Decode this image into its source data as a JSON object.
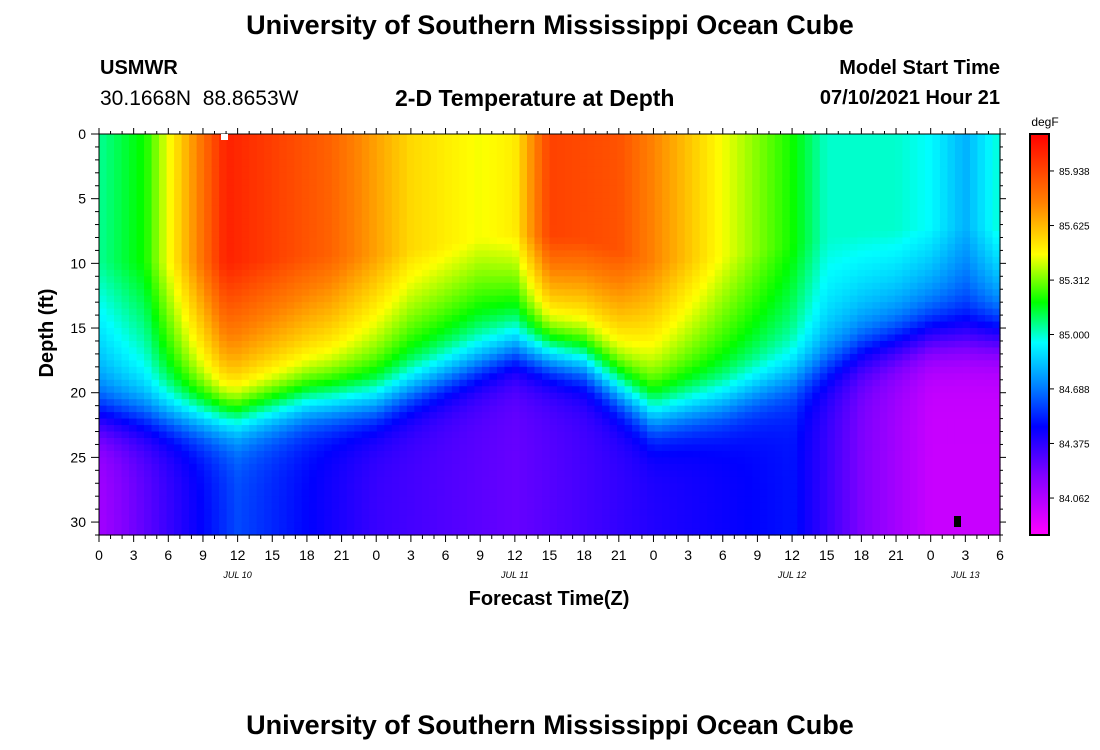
{
  "header": {
    "title": "University of Southern Mississippi Ocean Cube",
    "station_id": "USMWR",
    "station_coords": "30.1668N  88.8653W",
    "plot_title": "2-D Temperature at Depth",
    "model_start_label": "Model Start Time",
    "model_start_value": "07/10/2021 Hour 21"
  },
  "footer": {
    "title": "University of Southern Mississippi Ocean Cube"
  },
  "chart_data": {
    "type": "heatmap",
    "title": "2-D Temperature at Depth",
    "xlabel": "Forecast Time(Z)",
    "ylabel": "Depth (ft)",
    "x_range_hours": [
      0,
      78
    ],
    "y_range_ft": [
      0,
      31
    ],
    "y_inverted": true,
    "x_tick_labels": [
      "0",
      "3",
      "6",
      "9",
      "12",
      "15",
      "18",
      "21",
      "0",
      "3",
      "6",
      "9",
      "12",
      "15",
      "18",
      "21",
      "0",
      "3",
      "6",
      "9",
      "12",
      "15",
      "18",
      "21",
      "0",
      "3",
      "6"
    ],
    "date_labels": [
      {
        "label": "JUL 10",
        "hour": 12
      },
      {
        "label": "JUL 11",
        "hour": 36
      },
      {
        "label": "JUL 12",
        "hour": 60
      },
      {
        "label": "JUL 13",
        "hour": 75
      }
    ],
    "y_ticks": [
      0,
      5,
      10,
      15,
      20,
      25,
      30
    ],
    "colorbar": {
      "unit": "degF",
      "min": 83.85,
      "max": 86.15,
      "labels": [
        "85.938",
        "85.625",
        "85.312",
        "85.000",
        "84.688",
        "84.375",
        "84.062"
      ]
    },
    "thermocline_depth_ft": {
      "hours": [
        0,
        6,
        12,
        18,
        24,
        30,
        36,
        42,
        48,
        54,
        60,
        66,
        72,
        78
      ],
      "values": [
        22,
        22,
        22,
        21,
        21,
        19,
        17,
        18,
        22,
        21,
        19,
        17,
        16,
        16
      ]
    },
    "surface_temperature_degF": {
      "hours": [
        0,
        4,
        6,
        11,
        20,
        27,
        33,
        36,
        39,
        45,
        54,
        60,
        63,
        66,
        69,
        72,
        75,
        78
      ],
      "values": [
        85.05,
        85.2,
        85.45,
        86.05,
        85.85,
        85.55,
        85.45,
        85.5,
        85.95,
        85.9,
        85.45,
        85.2,
        85.0,
        85.0,
        85.0,
        84.95,
        84.8,
        85.0
      ]
    },
    "bottom_temperature_degF": {
      "hours": [
        0,
        12,
        24,
        36,
        48,
        60,
        66,
        72,
        78
      ],
      "values": [
        84.1,
        84.6,
        84.35,
        84.25,
        84.4,
        84.5,
        84.2,
        84.0,
        84.0
      ]
    }
  }
}
